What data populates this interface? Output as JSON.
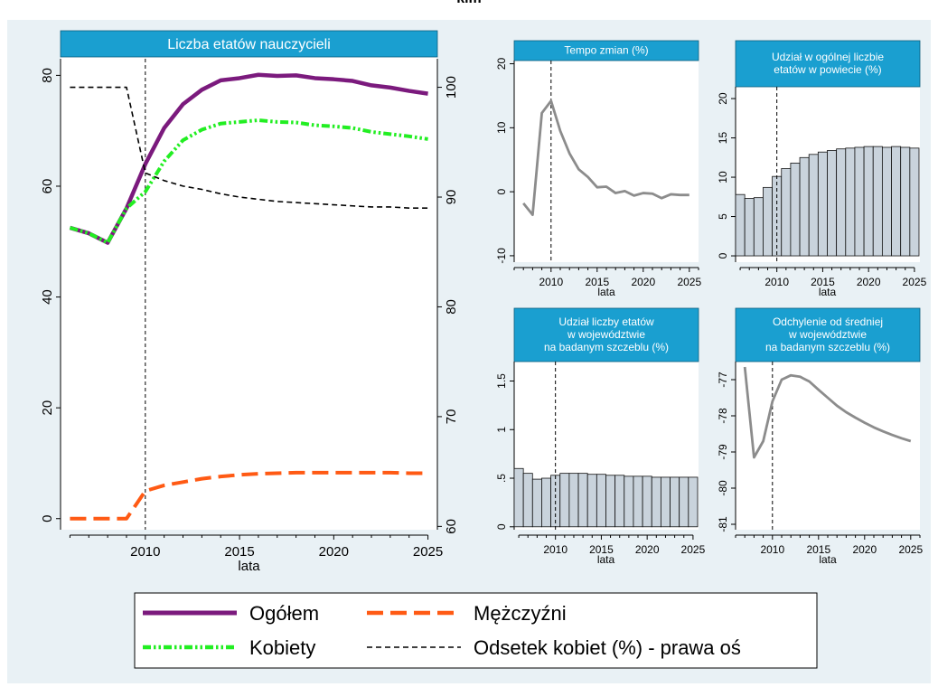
{
  "page_title": "kim",
  "chart_data": [
    {
      "id": "main",
      "type": "line",
      "title": "Liczba etatów nauczycieli",
      "xlabel": "lata",
      "x_ticks": [
        2010,
        2015,
        2020,
        2025
      ],
      "xlim": [
        2005.5,
        2025.5
      ],
      "ylim": [
        -2,
        83
      ],
      "y_ticks": [
        0,
        20,
        40,
        60,
        80
      ],
      "y2lim": [
        59.7,
        102.6
      ],
      "y2_ticks": [
        60,
        70,
        80,
        90,
        100
      ],
      "vline_x": 2010,
      "x": [
        2006,
        2007,
        2008,
        2009,
        2010,
        2011,
        2012,
        2013,
        2014,
        2015,
        2016,
        2017,
        2018,
        2019,
        2020,
        2021,
        2022,
        2023,
        2024,
        2025
      ],
      "series": [
        {
          "name": "Ogółem",
          "axis": "left",
          "color": "#7b1a7d",
          "dash": "solid",
          "values": [
            52.5,
            51.5,
            49.8,
            56.0,
            64.0,
            70.5,
            74.8,
            77.4,
            79.1,
            79.5,
            80.1,
            79.9,
            80.0,
            79.5,
            79.3,
            79.0,
            78.2,
            77.8,
            77.2,
            76.7
          ]
        },
        {
          "name": "Kobiety",
          "axis": "left",
          "color": "#22ee22",
          "dash": "dotdash",
          "values": [
            52.5,
            51.5,
            49.8,
            56.0,
            59.0,
            64.5,
            68.3,
            70.2,
            71.3,
            71.6,
            71.9,
            71.6,
            71.5,
            71.0,
            70.8,
            70.5,
            69.8,
            69.4,
            69.0,
            68.5
          ]
        },
        {
          "name": "Mężczyźni",
          "axis": "left",
          "color": "#ff5a14",
          "dash": "longdash",
          "values": [
            0,
            0,
            0,
            0,
            5.0,
            6.0,
            6.6,
            7.2,
            7.6,
            7.9,
            8.1,
            8.2,
            8.3,
            8.3,
            8.3,
            8.3,
            8.3,
            8.3,
            8.2,
            8.2
          ]
        },
        {
          "name": "Odsetek kobiet (%) - prawa oś",
          "axis": "right",
          "color": "#000000",
          "dash": "shortdash",
          "values": [
            100,
            100,
            100,
            100,
            92.2,
            91.5,
            91.0,
            90.7,
            90.3,
            90.0,
            89.8,
            89.6,
            89.5,
            89.4,
            89.3,
            89.2,
            89.1,
            89.1,
            89.0,
            89.0
          ]
        }
      ]
    },
    {
      "id": "tempo",
      "type": "line",
      "title_lines": [
        "Tempo zmian (%)"
      ],
      "xlabel": "lata",
      "x_ticks": [
        2010,
        2015,
        2020,
        2025
      ],
      "xlim": [
        2006,
        2026
      ],
      "ylim": [
        -11,
        20.5
      ],
      "y_ticks": [
        -10,
        0,
        10,
        20
      ],
      "vline_x": 2010,
      "color": "#8c8c8c",
      "x": [
        2007,
        2008,
        2009,
        2010,
        2011,
        2012,
        2013,
        2014,
        2015,
        2016,
        2017,
        2018,
        2019,
        2020,
        2021,
        2022,
        2023,
        2024,
        2025
      ],
      "values": [
        -1.8,
        -3.6,
        12.3,
        14.2,
        9.5,
        6.0,
        3.5,
        2.3,
        0.7,
        0.8,
        -0.2,
        0.1,
        -0.6,
        -0.2,
        -0.3,
        -1.0,
        -0.4,
        -0.5,
        -0.5
      ]
    },
    {
      "id": "udzial_powiat",
      "type": "bar",
      "title_lines": [
        "Udział w ogólnej liczbie",
        "etatów w powiecie (%)"
      ],
      "xlabel": "lata",
      "x_ticks": [
        2010,
        2015,
        2020,
        2025
      ],
      "xlim": [
        2005.5,
        2025.6
      ],
      "ylim": [
        -0.8,
        21.5
      ],
      "y_ticks": [
        0,
        5,
        10,
        15,
        20
      ],
      "vline_x": 2010,
      "bar_fill": "#c9d3dc",
      "x": [
        2006,
        2007,
        2008,
        2009,
        2010,
        2011,
        2012,
        2013,
        2014,
        2015,
        2016,
        2017,
        2018,
        2019,
        2020,
        2021,
        2022,
        2023,
        2024,
        2025
      ],
      "values": [
        7.8,
        7.3,
        7.4,
        8.7,
        10.1,
        11.1,
        11.8,
        12.5,
        12.9,
        13.2,
        13.4,
        13.6,
        13.7,
        13.8,
        13.9,
        13.9,
        13.8,
        13.9,
        13.8,
        13.7
      ]
    },
    {
      "id": "udzial_woj",
      "type": "bar",
      "title_lines": [
        "Udział liczby etatów",
        "w województwie",
        "na badanym szczeblu (%)"
      ],
      "xlabel": "lata",
      "x_ticks": [
        2010,
        2015,
        2020,
        2025
      ],
      "xlim": [
        2005.5,
        2025.6
      ],
      "y_ticks": [
        0,
        0.5,
        1,
        1.5
      ],
      "y_tick_labels": [
        "0",
        ".5",
        "1",
        "1.5"
      ],
      "ylim": [
        -0.03,
        1.7
      ],
      "vline_x": 2010,
      "bar_fill": "#c9d3dc",
      "x": [
        2006,
        2007,
        2008,
        2009,
        2010,
        2011,
        2012,
        2013,
        2014,
        2015,
        2016,
        2017,
        2018,
        2019,
        2020,
        2021,
        2022,
        2023,
        2024,
        2025
      ],
      "values": [
        0.6,
        0.55,
        0.49,
        0.5,
        0.53,
        0.55,
        0.55,
        0.55,
        0.54,
        0.54,
        0.53,
        0.53,
        0.52,
        0.52,
        0.52,
        0.51,
        0.51,
        0.51,
        0.51,
        0.51
      ]
    },
    {
      "id": "odchylenie",
      "type": "line",
      "title_lines": [
        "Odchylenie od średniej",
        "w województwie",
        "na badanym szczeblu (%)"
      ],
      "xlabel": "lata",
      "x_ticks": [
        2010,
        2015,
        2020,
        2025
      ],
      "xlim": [
        2006,
        2026
      ],
      "ylim": [
        -81.15,
        -76.5
      ],
      "y_ticks": [
        -81,
        -80,
        -79,
        -78,
        -77
      ],
      "vline_x": 2010,
      "color": "#8c8c8c",
      "x": [
        2007,
        2008,
        2009,
        2010,
        2011,
        2012,
        2013,
        2014,
        2015,
        2016,
        2017,
        2018,
        2019,
        2020,
        2021,
        2022,
        2023,
        2024,
        2025
      ],
      "values": [
        -76.65,
        -79.15,
        -78.7,
        -77.6,
        -77.0,
        -76.88,
        -76.92,
        -77.05,
        -77.28,
        -77.5,
        -77.72,
        -77.9,
        -78.05,
        -78.19,
        -78.32,
        -78.43,
        -78.53,
        -78.62,
        -78.7
      ]
    }
  ],
  "legend": [
    {
      "label": "Ogółem",
      "color": "#7b1a7d",
      "dash": "solid"
    },
    {
      "label": "Mężczyźni",
      "color": "#ff5a14",
      "dash": "longdash"
    },
    {
      "label": "Kobiety",
      "color": "#22ee22",
      "dash": "dotdash"
    },
    {
      "label": "Odsetek kobiet (%) - prawa oś",
      "color": "#000000",
      "dash": "shortdash"
    }
  ],
  "title_bar_color": "#1a9fd0"
}
